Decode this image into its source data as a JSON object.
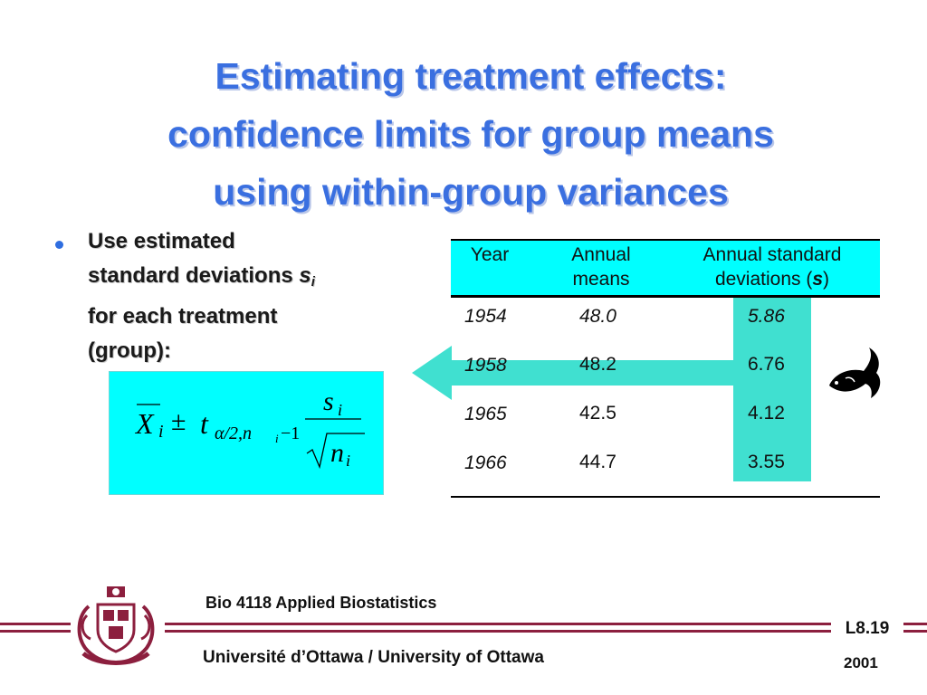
{
  "slide": {
    "title_lines": [
      "Estimating treatment effects:",
      "confidence limits for group means",
      "using within-group variances"
    ],
    "bullet": {
      "line1": "Use estimated",
      "line2_prefix": "standard deviations ",
      "line2_symbol": "s",
      "line2_sub": "i",
      "line3": "for each treatment",
      "line4": "(group):"
    },
    "formula": {
      "xbar": "X",
      "sub_i": "i",
      "pm": "±",
      "t": "t",
      "t_sub": "α/2,n",
      "t_sub_i": "i",
      "t_sub_tail": "−1",
      "numerator": "s",
      "numerator_sub": "i",
      "denominator": "n",
      "denominator_sub": "i"
    },
    "table": {
      "headers": {
        "year": "Year",
        "means_line1": "Annual",
        "means_line2": "means",
        "sd_line1": "Annual standard",
        "sd_line2_prefix": "deviations (",
        "sd_line2_symbol": "s",
        "sd_line2_suffix": ")"
      },
      "rows": [
        {
          "year": "1954",
          "mean": "48.0",
          "sd": "5.86"
        },
        {
          "year": "1958",
          "mean": "48.2",
          "sd": "6.76"
        },
        {
          "year": "1965",
          "mean": "42.5",
          "sd": "4.12"
        },
        {
          "year": "1966",
          "mean": "44.7",
          "sd": "3.55"
        }
      ]
    },
    "footer": {
      "course": "Bio 4118 Applied Biostatistics",
      "university": "Université d’Ottawa / University of Ottawa",
      "slide_number": "L8.19",
      "year": "2001"
    },
    "colors": {
      "title": "#3a6fe0",
      "highlight": "#00ffff",
      "arrow": "#40e0d0",
      "footer_rule": "#8c1f3e"
    },
    "icons": [
      "fish-icon",
      "university-crest-icon",
      "left-arrow-icon"
    ]
  }
}
